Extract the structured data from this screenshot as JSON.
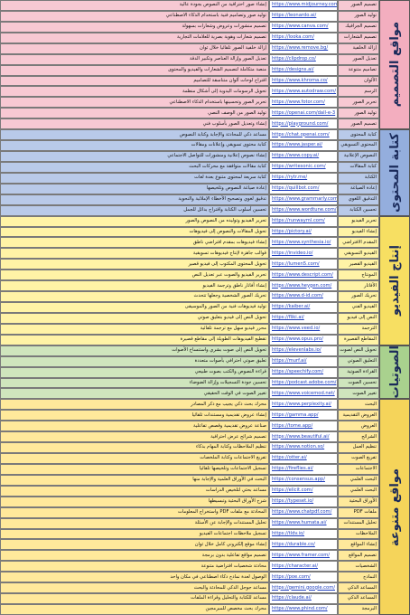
{
  "sections": [
    {
      "title": "مواقع التصميم",
      "color": "#f7c9d3",
      "label_color": "#f3aebf",
      "rows": [
        [
          "إنشاء صور احترافية من النصوص بجودة عالية",
          "https://www.midjourney.com/",
          "تصميم الصور"
        ],
        [
          "توليد صور وتصاميم فنية باستخدام الذكاء الاصطناعي",
          "https://leonardo.ai/",
          "توليد الصور"
        ],
        [
          "تصميم منشورات وعروض وشعارات بسهولة",
          "https://www.canva.com/",
          "تصميم الجرافيك"
        ],
        [
          "تصميم شعارات وهوية بصرية للعلامات التجارية",
          "https://looka.com/",
          "تصميم الشعارات"
        ],
        [
          "إزالة خلفية الصور تلقائيا خلال ثوان",
          "https://www.remove.bg/",
          "إزالة الخلفية"
        ],
        [
          "تعديل الصور وإزالة العناصر وتكبير الدقة",
          "https://clipdrop.co/",
          "تعديل الصور"
        ],
        [
          "منصة متكاملة لتصميم الشعارات والفيديو والمحتوى",
          "https://designs.ai/",
          "تصاميم متنوعة"
        ],
        [
          "اقتراح لوحات ألوان متناسقة للتصاميم",
          "https://www.khroma.co/",
          "الألوان"
        ],
        [
          "تحويل الرسومات اليدوية إلى أشكال منظمة",
          "https://www.autodraw.com/",
          "الرسم"
        ],
        [
          "تحرير الصور وتحسينها باستخدام الذكاء الاصطناعي",
          "https://www.fotor.com/",
          "تحرير الصور"
        ],
        [
          "توليد الصور من الوصف النصي",
          "https://openai.com/dall-e-3",
          "توليد الصور"
        ],
        [
          "إنشاء وتعديل الصور بأسلوب فني",
          "https://playground.com/",
          "تصميم الصور"
        ]
      ]
    },
    {
      "title": "كتابة المحتوى",
      "color": "#b9cae9",
      "label_color": "#94aedd",
      "rows": [
        [
          "مساعد ذكي للمحادثة والإجابة وكتابة النصوص",
          "https://chat.openai.com/",
          "كتابة المحتوى"
        ],
        [
          "كتابة محتوى تسويقي وإعلانات ومقالات",
          "https://www.jasper.ai/",
          "المحتوى التسويقي"
        ],
        [
          "إنشاء نصوص إعلانية ومنشورات للتواصل الاجتماعي",
          "https://www.copy.ai/",
          "النصوص الإعلانية"
        ],
        [
          "كتابة مقالات متوافقة مع محركات البحث",
          "https://writesonic.com/",
          "كتابة المقالات"
        ],
        [
          "كتابة سريعة لمحتوى متنوع بعدة لغات",
          "https://rytr.me/",
          "الكتابة"
        ],
        [
          "إعادة صياغة النصوص وتلخيصها",
          "https://quillbot.com/",
          "إعادة الصياغة"
        ],
        [
          "تدقيق لغوي وتصحيح الأخطاء الإملائية والنحوية",
          "https://www.grammarly.com/",
          "التدقيق اللغوي"
        ],
        [
          "تحسين أسلوب الكتابة واقتراح بدائل للجمل",
          "https://www.wordtune.com/",
          "تحسين الكتابة"
        ]
      ]
    },
    {
      "title": "إنتاج الفيديو",
      "color": "#fff3a6",
      "label_color": "#f7df62",
      "rows": [
        [
          "تحرير الفيديو وتوليده من النصوص والصور",
          "https://runwayml.com/",
          "تحرير الفيديو"
        ],
        [
          "تحويل المقالات والنصوص إلى فيديوهات",
          "https://pictory.ai/",
          "إنشاء الفيديو"
        ],
        [
          "إنشاء فيديوهات بمقدم افتراضي ناطق",
          "https://www.synthesia.io/",
          "المقدم الافتراضي"
        ],
        [
          "قوالب جاهزة لإنتاج فيديوهات تسويقية",
          "https://invideo.io/",
          "الفيديو التسويقي"
        ],
        [
          "تحويل المحتوى المكتوب إلى فيديو قصير",
          "https://lumen5.com/",
          "الفيديو القصير"
        ],
        [
          "تحرير الفيديو والصوت عبر تعديل النص",
          "https://www.descript.com/",
          "المونتاج"
        ],
        [
          "إنشاء أفاتار ناطق وترجمة الفيديو",
          "https://www.heygen.com/",
          "الأفاتار"
        ],
        [
          "تحريك الصور الشخصية وجعلها تتحدث",
          "https://www.d-id.com/",
          "تحريك الصور"
        ],
        [
          "توليد فيديوهات فنية من الصور والموسيقى",
          "https://kaiber.ai/",
          "الفيديو الفني"
        ],
        [
          "تحويل النص إلى فيديو بتعليق صوتي",
          "https://fliki.ai/",
          "النص إلى فيديو"
        ],
        [
          "محرر فيديو سهل مع ترجمة تلقائية",
          "https://www.veed.io/",
          "الترجمة"
        ],
        [
          "تقطيع الفيديوهات الطويلة إلى مقاطع قصيرة",
          "https://www.opus.pro/",
          "المقاطع القصيرة"
        ]
      ]
    },
    {
      "title": "الصوتيات",
      "color": "#cfe5bd",
      "label_color": "#a9d18e",
      "rows": [
        [
          "تحويل النص إلى صوت بشري واستنساخ الأصوات",
          "https://elevenlabs.io/",
          "تحويل النص لصوت"
        ],
        [
          "تعليق صوتي احترافي بأصوات متعددة",
          "https://murf.ai/",
          "التعليق الصوتي"
        ],
        [
          "قراءة النصوص والكتب بصوت طبيعي",
          "https://speechify.com/",
          "القراءة الصوتية"
        ],
        [
          "تحسين جودة التسجيلات وإزالة الضوضاء",
          "https://podcast.adobe.com/",
          "تحسين الصوت"
        ],
        [
          "تغيير الصوت في الوقت الحقيقي",
          "https://www.voicemod.net/",
          "تغيير الصوت"
        ]
      ]
    },
    {
      "title": "مواقع متنوعة",
      "color": "#ffe99b",
      "label_color": "#f5d45a",
      "rows": [
        [
          "محرك بحث ذكي يجيب مع ذكر المصادر",
          "https://www.perplexity.ai/",
          "البحث"
        ],
        [
          "إنشاء عروض تقديمية ومستندات تلقائيا",
          "https://gamma.app/",
          "العروض التقديمية"
        ],
        [
          "صناعة عروض تقديمية وقصص تفاعلية",
          "https://tome.app/",
          "العروض"
        ],
        [
          "تصميم شرائح عرض احترافية",
          "https://www.beautiful.ai/",
          "الشرائح"
        ],
        [
          "تنظيم الملاحظات وكتابة المهام بذكاء",
          "https://www.notion.so/",
          "تنظيم العمل"
        ],
        [
          "تفريغ الاجتماعات وكتابة الملخصات",
          "https://otter.ai/",
          "تفريغ الصوت"
        ],
        [
          "تسجيل الاجتماعات وتلخيصها تلقائيا",
          "https://fireflies.ai/",
          "الاجتماعات"
        ],
        [
          "البحث في الأوراق العلمية والإجابة منها",
          "https://consensus.app/",
          "البحث العلمي"
        ],
        [
          "مساعد بحثي لتلخيص الدراسات",
          "https://elicit.com/",
          "البحث العلمي"
        ],
        [
          "شرح الأوراق البحثية وتبسيطها",
          "https://typeset.io/",
          "الأوراق البحثية"
        ],
        [
          "المحادثة مع ملفات PDF واستخراج المعلومات",
          "https://www.chatpdf.com/",
          "ملفات PDF"
        ],
        [
          "تحليل المستندات والإجابة عن الأسئلة",
          "https://www.humata.ai/",
          "تحليل المستندات"
        ],
        [
          "تسجيل ملاحظات اجتماعات الفيديو",
          "https://tldv.io/",
          "الملاحظات"
        ],
        [
          "إنشاء موقع إلكتروني كامل خلال ثوان",
          "https://durable.co/",
          "إنشاء المواقع"
        ],
        [
          "تصميم مواقع تفاعلية بدون برمجة",
          "https://www.framer.com/",
          "تصميم المواقع"
        ],
        [
          "محادثة شخصيات افتراضية متنوعة",
          "https://character.ai/",
          "الشخصيات"
        ],
        [
          "الوصول لعدة نماذج ذكاء اصطناعي في مكان واحد",
          "https://poe.com/",
          "النماذج"
        ],
        [
          "مساعد جوجل الذكي للمحادثة والبحث",
          "https://gemini.google.com/",
          "المساعد الذكي"
        ],
        [
          "مساعد للكتابة والتحليل وقراءة الملفات",
          "https://claude.ai/",
          "المساعد الذكي"
        ],
        [
          "محرك بحث مخصص للمبرمجين",
          "https://www.phind.com/",
          "البرمجة"
        ]
      ]
    }
  ]
}
